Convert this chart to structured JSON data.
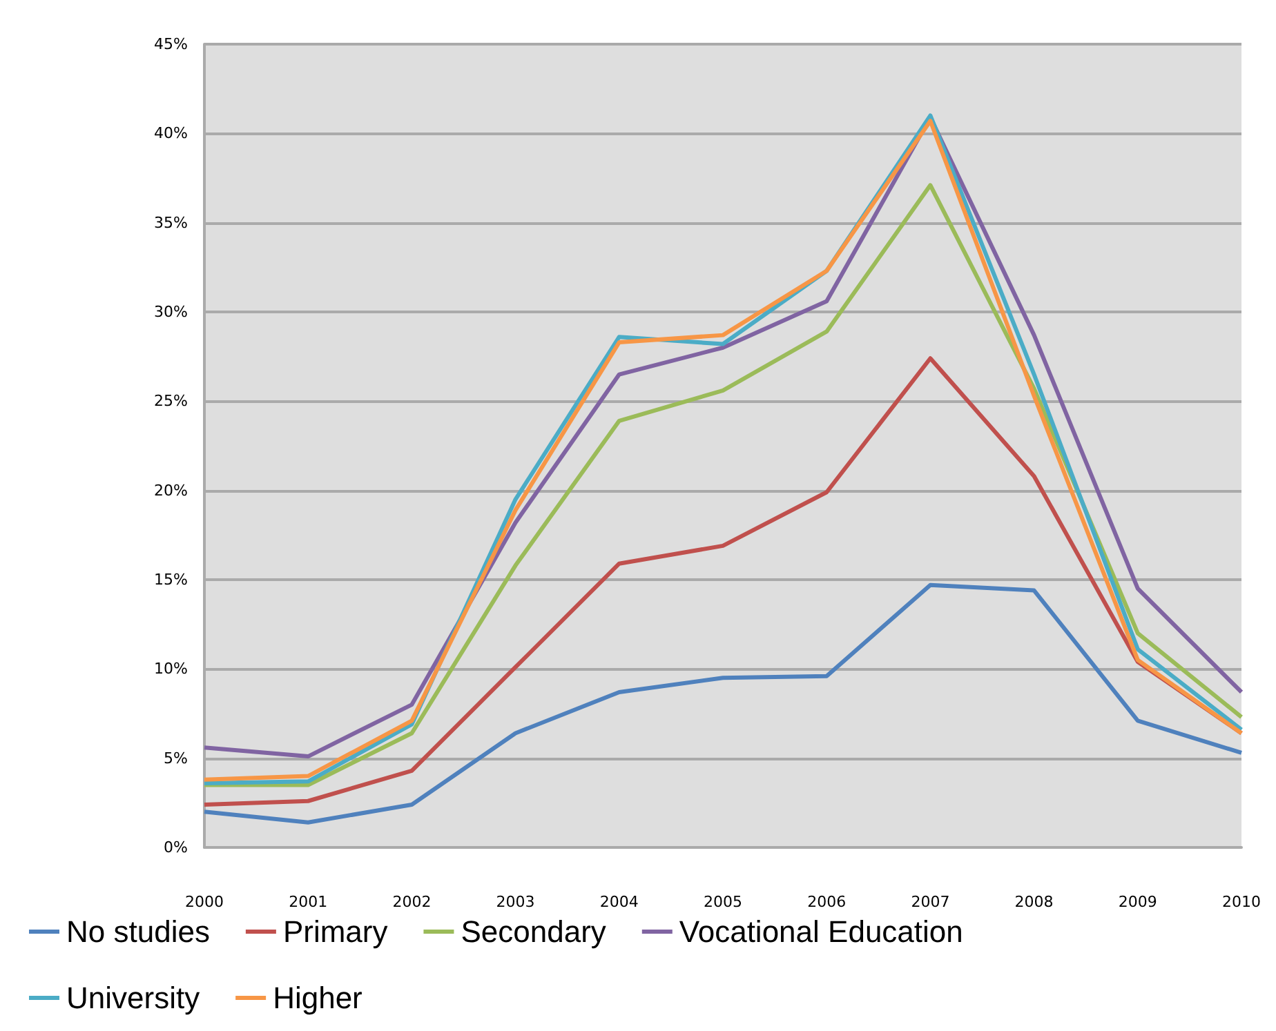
{
  "chart_data": {
    "type": "line",
    "categories": [
      "2000",
      "2001",
      "2002",
      "2003",
      "2004",
      "2005",
      "2006",
      "2007",
      "2008",
      "2009",
      "2010"
    ],
    "series": [
      {
        "name": "No studies",
        "color": "#4f81bd",
        "values": [
          2.0,
          1.4,
          2.4,
          6.4,
          8.7,
          9.5,
          9.6,
          14.7,
          14.4,
          7.1,
          5.3
        ]
      },
      {
        "name": "Primary",
        "color": "#c0504d",
        "values": [
          2.4,
          2.6,
          4.3,
          10.1,
          15.9,
          16.9,
          19.9,
          27.4,
          20.8,
          10.4,
          6.4
        ]
      },
      {
        "name": "Secondary",
        "color": "#9bbb59",
        "values": [
          3.5,
          3.5,
          6.4,
          15.8,
          23.9,
          25.6,
          28.9,
          37.1,
          25.7,
          12.0,
          7.3
        ]
      },
      {
        "name": "Vocational Education",
        "color": "#8064a2",
        "values": [
          5.6,
          5.1,
          8.0,
          18.2,
          26.5,
          28.0,
          30.6,
          40.9,
          28.7,
          14.5,
          8.7
        ]
      },
      {
        "name": "University",
        "color": "#4bacc6",
        "values": [
          3.6,
          3.7,
          6.9,
          19.5,
          28.6,
          28.2,
          32.3,
          41.0,
          26.5,
          11.1,
          6.6
        ]
      },
      {
        "name": "Higher",
        "color": "#f79646",
        "values": [
          3.8,
          4.0,
          7.1,
          18.9,
          28.3,
          28.7,
          32.3,
          40.7,
          25.3,
          10.5,
          6.4
        ]
      }
    ],
    "ylim": [
      0,
      45
    ],
    "yticks": [
      {
        "value": 0,
        "label": "0%"
      },
      {
        "value": 5,
        "label": "5%"
      },
      {
        "value": 10,
        "label": "10%"
      },
      {
        "value": 15,
        "label": "15%"
      },
      {
        "value": 20,
        "label": "20%"
      },
      {
        "value": 25,
        "label": "25%"
      },
      {
        "value": 30,
        "label": "30%"
      },
      {
        "value": 35,
        "label": "35%"
      },
      {
        "value": 40,
        "label": "40%"
      },
      {
        "value": 45,
        "label": "45%"
      }
    ],
    "grid": "y",
    "legend": "bottom",
    "marker": "none",
    "line_style": "solid"
  }
}
